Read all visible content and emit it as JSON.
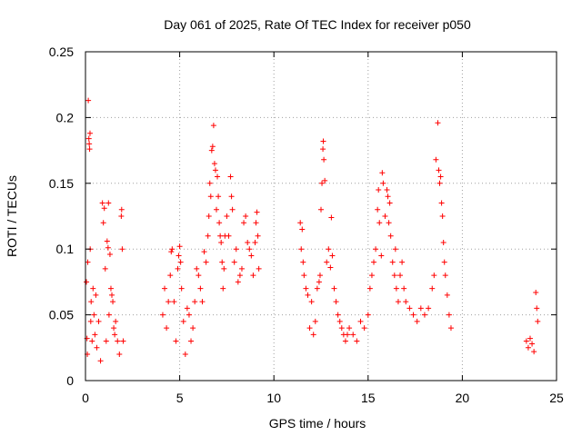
{
  "chart_data": {
    "type": "scatter",
    "title": "Day 061 of 2025, Rate Of TEC Index for receiver p050",
    "xlabel": "GPS time / hours",
    "ylabel": "ROTI / TECUs",
    "xlim": [
      0,
      25
    ],
    "ylim": [
      0,
      0.25
    ],
    "x_ticks": [
      "0",
      "5",
      "10",
      "15",
      "20",
      "25"
    ],
    "y_ticks": [
      "0",
      "0.05",
      "0.1",
      "0.15",
      "0.2",
      "0.25"
    ],
    "grid": true,
    "marker": "plus",
    "color": "#ff0000",
    "series": [
      {
        "points": [
          [
            0.05,
            0.075
          ],
          [
            0.08,
            0.032
          ],
          [
            0.1,
            0.02
          ],
          [
            0.12,
            0.09
          ],
          [
            0.15,
            0.213
          ],
          [
            0.18,
            0.184
          ],
          [
            0.2,
            0.18
          ],
          [
            0.22,
            0.176
          ],
          [
            0.24,
            0.188
          ],
          [
            0.25,
            0.1
          ],
          [
            0.28,
            0.045
          ],
          [
            0.3,
            0.06
          ],
          [
            0.35,
            0.03
          ],
          [
            0.4,
            0.07
          ],
          [
            0.45,
            0.05
          ],
          [
            0.5,
            0.035
          ],
          [
            0.55,
            0.065
          ],
          [
            0.6,
            0.025
          ],
          [
            0.7,
            0.045
          ],
          [
            0.8,
            0.015
          ],
          [
            0.9,
            0.135
          ],
          [
            0.95,
            0.12
          ],
          [
            1.0,
            0.131
          ],
          [
            1.05,
            0.085
          ],
          [
            1.1,
            0.03
          ],
          [
            1.15,
            0.106
          ],
          [
            1.2,
            0.101
          ],
          [
            1.22,
            0.135
          ],
          [
            1.25,
            0.05
          ],
          [
            1.3,
            0.096
          ],
          [
            1.35,
            0.07
          ],
          [
            1.4,
            0.065
          ],
          [
            1.45,
            0.06
          ],
          [
            1.5,
            0.04
          ],
          [
            1.55,
            0.035
          ],
          [
            1.6,
            0.045
          ],
          [
            1.7,
            0.03
          ],
          [
            1.8,
            0.02
          ],
          [
            1.9,
            0.125
          ],
          [
            1.92,
            0.13
          ],
          [
            1.95,
            0.1
          ],
          [
            2.0,
            0.03
          ],
          [
            4.1,
            0.05
          ],
          [
            4.2,
            0.07
          ],
          [
            4.3,
            0.04
          ],
          [
            4.4,
            0.06
          ],
          [
            4.5,
            0.08
          ],
          [
            4.55,
            0.098
          ],
          [
            4.6,
            0.1
          ],
          [
            4.7,
            0.06
          ],
          [
            4.8,
            0.03
          ],
          [
            4.9,
            0.085
          ],
          [
            4.95,
            0.095
          ],
          [
            5.0,
            0.102
          ],
          [
            5.05,
            0.09
          ],
          [
            5.1,
            0.07
          ],
          [
            5.2,
            0.045
          ],
          [
            5.3,
            0.02
          ],
          [
            5.4,
            0.055
          ],
          [
            5.5,
            0.05
          ],
          [
            5.6,
            0.03
          ],
          [
            5.7,
            0.04
          ],
          [
            5.8,
            0.06
          ],
          [
            5.9,
            0.085
          ],
          [
            6.0,
            0.08
          ],
          [
            6.1,
            0.07
          ],
          [
            6.2,
            0.06
          ],
          [
            6.3,
            0.098
          ],
          [
            6.4,
            0.09
          ],
          [
            6.5,
            0.11
          ],
          [
            6.55,
            0.125
          ],
          [
            6.6,
            0.15
          ],
          [
            6.65,
            0.14
          ],
          [
            6.7,
            0.175
          ],
          [
            6.75,
            0.178
          ],
          [
            6.8,
            0.194
          ],
          [
            6.85,
            0.165
          ],
          [
            6.9,
            0.16
          ],
          [
            6.95,
            0.13
          ],
          [
            7.0,
            0.155
          ],
          [
            7.05,
            0.14
          ],
          [
            7.1,
            0.12
          ],
          [
            7.15,
            0.11
          ],
          [
            7.2,
            0.105
          ],
          [
            7.25,
            0.09
          ],
          [
            7.3,
            0.07
          ],
          [
            7.35,
            0.085
          ],
          [
            7.4,
            0.11
          ],
          [
            7.5,
            0.125
          ],
          [
            7.6,
            0.11
          ],
          [
            7.7,
            0.155
          ],
          [
            7.75,
            0.14
          ],
          [
            7.8,
            0.13
          ],
          [
            7.9,
            0.09
          ],
          [
            8.0,
            0.1
          ],
          [
            8.1,
            0.075
          ],
          [
            8.2,
            0.08
          ],
          [
            8.3,
            0.085
          ],
          [
            8.4,
            0.12
          ],
          [
            8.5,
            0.125
          ],
          [
            8.6,
            0.105
          ],
          [
            8.7,
            0.1
          ],
          [
            8.8,
            0.095
          ],
          [
            8.9,
            0.08
          ],
          [
            9.0,
            0.105
          ],
          [
            9.05,
            0.12
          ],
          [
            9.1,
            0.128
          ],
          [
            9.15,
            0.11
          ],
          [
            9.2,
            0.085
          ],
          [
            11.4,
            0.12
          ],
          [
            11.45,
            0.1
          ],
          [
            11.5,
            0.115
          ],
          [
            11.55,
            0.09
          ],
          [
            11.6,
            0.08
          ],
          [
            11.7,
            0.07
          ],
          [
            11.8,
            0.065
          ],
          [
            11.9,
            0.04
          ],
          [
            12.0,
            0.06
          ],
          [
            12.1,
            0.035
          ],
          [
            12.2,
            0.045
          ],
          [
            12.3,
            0.07
          ],
          [
            12.4,
            0.075
          ],
          [
            12.45,
            0.08
          ],
          [
            12.5,
            0.13
          ],
          [
            12.55,
            0.15
          ],
          [
            12.6,
            0.176
          ],
          [
            12.62,
            0.182
          ],
          [
            12.65,
            0.168
          ],
          [
            12.7,
            0.152
          ],
          [
            12.8,
            0.09
          ],
          [
            12.9,
            0.1
          ],
          [
            13.0,
            0.086
          ],
          [
            13.05,
            0.124
          ],
          [
            13.1,
            0.095
          ],
          [
            13.2,
            0.07
          ],
          [
            13.3,
            0.06
          ],
          [
            13.4,
            0.05
          ],
          [
            13.5,
            0.045
          ],
          [
            13.6,
            0.04
          ],
          [
            13.7,
            0.035
          ],
          [
            13.8,
            0.03
          ],
          [
            13.9,
            0.035
          ],
          [
            14.0,
            0.04
          ],
          [
            14.2,
            0.035
          ],
          [
            14.4,
            0.03
          ],
          [
            14.6,
            0.045
          ],
          [
            14.8,
            0.04
          ],
          [
            15.0,
            0.05
          ],
          [
            15.1,
            0.07
          ],
          [
            15.2,
            0.08
          ],
          [
            15.3,
            0.09
          ],
          [
            15.4,
            0.1
          ],
          [
            15.5,
            0.13
          ],
          [
            15.55,
            0.145
          ],
          [
            15.6,
            0.12
          ],
          [
            15.7,
            0.095
          ],
          [
            15.75,
            0.158
          ],
          [
            15.8,
            0.15
          ],
          [
            15.9,
            0.125
          ],
          [
            16.0,
            0.145
          ],
          [
            16.05,
            0.14
          ],
          [
            16.1,
            0.12
          ],
          [
            16.15,
            0.135
          ],
          [
            16.2,
            0.11
          ],
          [
            16.3,
            0.09
          ],
          [
            16.4,
            0.08
          ],
          [
            16.45,
            0.1
          ],
          [
            16.5,
            0.07
          ],
          [
            16.6,
            0.06
          ],
          [
            16.7,
            0.08
          ],
          [
            16.8,
            0.09
          ],
          [
            16.9,
            0.07
          ],
          [
            17.0,
            0.06
          ],
          [
            17.2,
            0.055
          ],
          [
            17.4,
            0.05
          ],
          [
            17.6,
            0.045
          ],
          [
            17.8,
            0.055
          ],
          [
            18.0,
            0.05
          ],
          [
            18.2,
            0.055
          ],
          [
            18.4,
            0.07
          ],
          [
            18.5,
            0.08
          ],
          [
            18.6,
            0.168
          ],
          [
            18.7,
            0.196
          ],
          [
            18.75,
            0.16
          ],
          [
            18.8,
            0.15
          ],
          [
            18.85,
            0.155
          ],
          [
            18.9,
            0.135
          ],
          [
            18.95,
            0.125
          ],
          [
            19.0,
            0.105
          ],
          [
            19.05,
            0.09
          ],
          [
            19.1,
            0.08
          ],
          [
            19.2,
            0.065
          ],
          [
            19.3,
            0.05
          ],
          [
            19.4,
            0.04
          ],
          [
            23.4,
            0.03
          ],
          [
            23.5,
            0.025
          ],
          [
            23.6,
            0.032
          ],
          [
            23.7,
            0.028
          ],
          [
            23.8,
            0.022
          ],
          [
            23.9,
            0.067
          ],
          [
            23.95,
            0.055
          ],
          [
            24.0,
            0.045
          ]
        ]
      }
    ]
  }
}
